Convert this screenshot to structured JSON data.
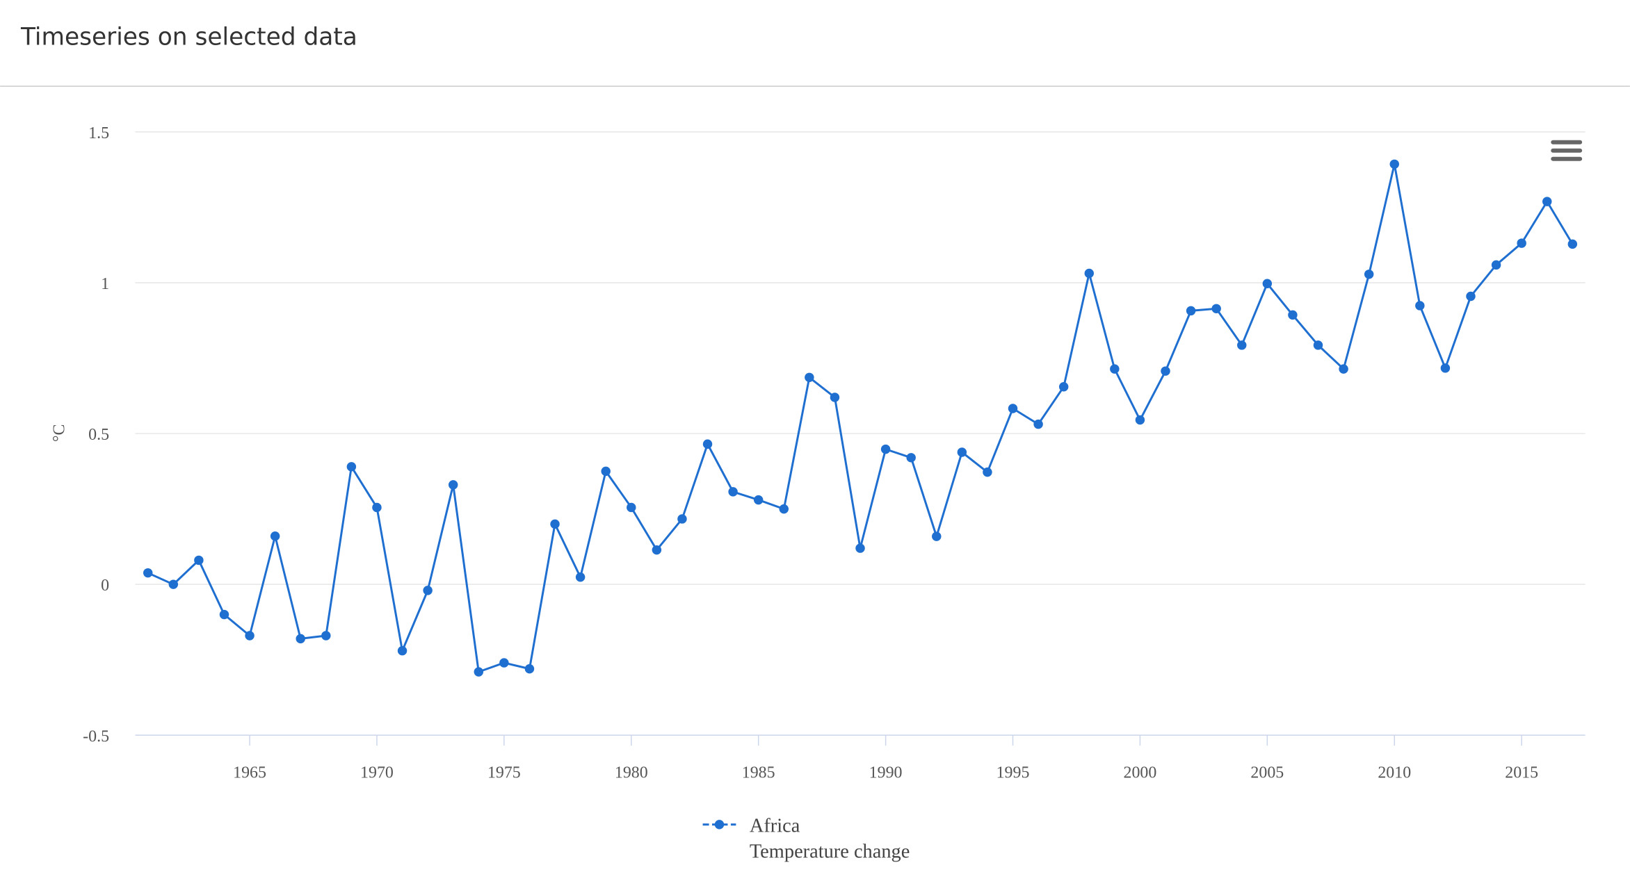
{
  "title": "Timeseries on selected data",
  "chart_data": {
    "type": "line",
    "y_label": "°C",
    "x": [
      1961,
      1962,
      1963,
      1964,
      1965,
      1966,
      1967,
      1968,
      1969,
      1970,
      1971,
      1972,
      1973,
      1974,
      1975,
      1976,
      1977,
      1978,
      1979,
      1980,
      1981,
      1982,
      1983,
      1984,
      1985,
      1986,
      1987,
      1988,
      1989,
      1990,
      1991,
      1992,
      1993,
      1994,
      1995,
      1996,
      1997,
      1998,
      1999,
      2000,
      2001,
      2002,
      2003,
      2004,
      2005,
      2006,
      2007,
      2008,
      2009,
      2010,
      2011,
      2012,
      2013,
      2014,
      2015,
      2016,
      2017
    ],
    "series": [
      {
        "name": "Africa",
        "description": "Temperature change",
        "color": "#1f6fd1",
        "values": [
          0.038,
          0.0,
          0.08,
          -0.1,
          -0.17,
          0.16,
          -0.18,
          -0.17,
          0.39,
          0.255,
          -0.22,
          -0.02,
          0.33,
          -0.29,
          -0.26,
          -0.28,
          0.2,
          0.024,
          0.375,
          0.255,
          0.114,
          0.217,
          0.465,
          0.307,
          0.28,
          0.25,
          0.686,
          0.62,
          0.12,
          0.448,
          0.42,
          0.159,
          0.438,
          0.372,
          0.583,
          0.531,
          0.655,
          1.031,
          0.714,
          0.545,
          0.707,
          0.907,
          0.914,
          0.793,
          0.997,
          0.893,
          0.793,
          0.714,
          1.028,
          1.393,
          0.924,
          0.717,
          0.955,
          1.059,
          1.131,
          1.269,
          1.128
        ]
      }
    ],
    "xlim": [
      1960.5,
      2017.5
    ],
    "ylim": [
      -0.5,
      1.5
    ],
    "xticks": [
      1965,
      1970,
      1975,
      1980,
      1985,
      1990,
      1995,
      2000,
      2005,
      2010,
      2015
    ],
    "yticks": [
      -0.5,
      0,
      0.5,
      1,
      1.5
    ],
    "grid": true
  }
}
